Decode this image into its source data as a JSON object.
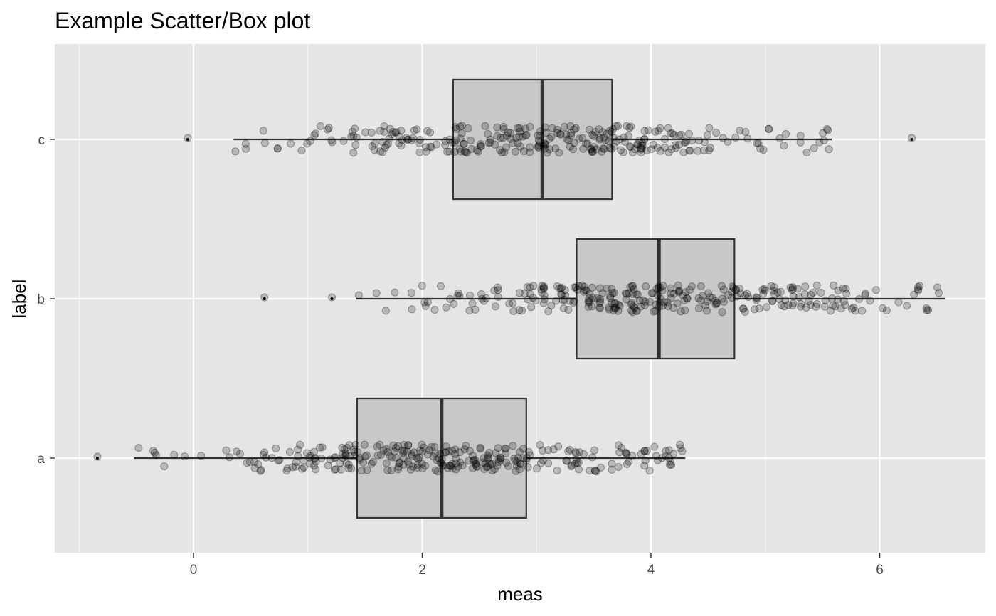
{
  "chart_data": {
    "type": "boxplot",
    "title": "Example Scatter/Box plot",
    "xlabel": "meas",
    "ylabel": "label",
    "xlim": [
      -1.2,
      7.1
    ],
    "x_ticks": [
      0,
      2,
      4,
      6
    ],
    "x_minor_ticks": [
      -1,
      1,
      3,
      5
    ],
    "categories": [
      "a",
      "b",
      "c"
    ],
    "orientation": "horizontal",
    "grid": true,
    "panel_background": "#e5e5e5",
    "box_fill": "#c8c8c8",
    "point_color": "#000000",
    "point_alpha": 0.2,
    "series": [
      {
        "category": "a",
        "q1": 1.43,
        "median": 2.17,
        "q3": 2.91,
        "whisker_low": -0.52,
        "whisker_high": 4.3,
        "outliers": [
          -0.84
        ],
        "jitter_min": -0.52,
        "jitter_max": 4.3,
        "jitter_center": 2.2,
        "n_points": 300
      },
      {
        "category": "b",
        "q1": 3.35,
        "median": 4.07,
        "q3": 4.73,
        "whisker_low": 1.42,
        "whisker_high": 6.57,
        "outliers": [
          0.62,
          1.21
        ],
        "jitter_min": 1.42,
        "jitter_max": 6.57,
        "jitter_center": 4.05,
        "n_points": 300
      },
      {
        "category": "c",
        "q1": 2.27,
        "median": 3.05,
        "q3": 3.66,
        "whisker_low": 0.35,
        "whisker_high": 5.58,
        "outliers": [
          -0.05,
          6.28
        ],
        "jitter_min": 0.35,
        "jitter_max": 5.58,
        "jitter_center": 3.0,
        "n_points": 300
      }
    ]
  }
}
